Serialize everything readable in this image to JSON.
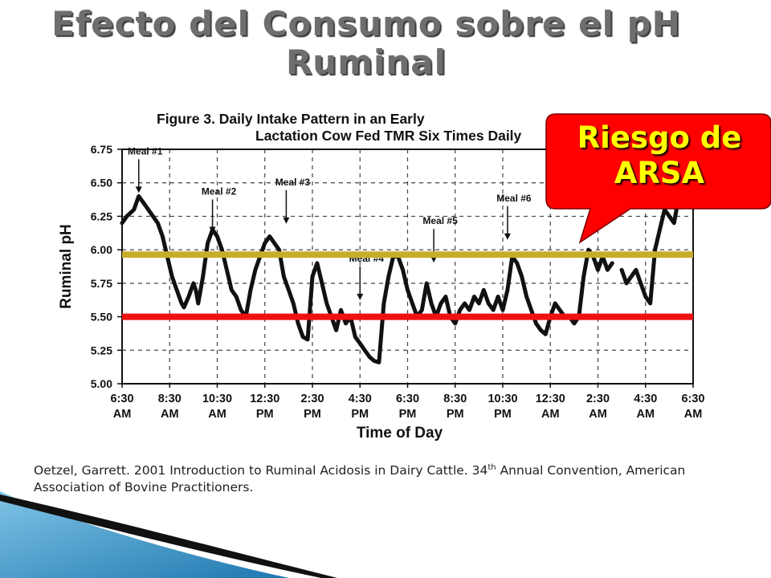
{
  "slide": {
    "title_line1": "Efecto del Consumo sobre el pH",
    "title_line2": "Ruminal",
    "callout_line1": "Riesgo de",
    "callout_line2": "ARSA",
    "citation_part1": "Oetzel, Garrett. 2001   Introduction to Ruminal Acidosis in Dairy Cattle.  34",
    "citation_sup": "th",
    "citation_part2": " Annual Convention, American Association of Bovine Practitioners.",
    "colors": {
      "threshold_gold": "#c8ad2a",
      "threshold_red": "#ee1111",
      "callout_fill": "#ff0000",
      "callout_text": "#ffff00",
      "decor_blue": "#2f8fc2"
    }
  },
  "chart_data": {
    "type": "line",
    "title": "Figure 3. Daily Intake Pattern in an Early Lactation Cow Fed TMR Six Times Daily",
    "xlabel": "Time of Day",
    "ylabel": "Ruminal pH",
    "ylim": [
      5.0,
      6.75
    ],
    "yticks": [
      "6.75",
      "6.50",
      "6.25",
      "6.00",
      "5.75",
      "5.50",
      "5.25",
      "5.00"
    ],
    "xticks": [
      {
        "time": "6:30",
        "ampm": "AM"
      },
      {
        "time": "8:30",
        "ampm": "AM"
      },
      {
        "time": "10:30",
        "ampm": "AM"
      },
      {
        "time": "12:30",
        "ampm": "PM"
      },
      {
        "time": "2:30",
        "ampm": "PM"
      },
      {
        "time": "4:30",
        "ampm": "PM"
      },
      {
        "time": "6:30",
        "ampm": "PM"
      },
      {
        "time": "8:30",
        "ampm": "PM"
      },
      {
        "time": "10:30",
        "ampm": "PM"
      },
      {
        "time": "12:30",
        "ampm": "AM"
      },
      {
        "time": "2:30",
        "ampm": "AM"
      },
      {
        "time": "4:30",
        "ampm": "AM"
      },
      {
        "time": "6:30",
        "ampm": "AM"
      }
    ],
    "grid": true,
    "thresholds": [
      {
        "value": 6.0,
        "color": "#c8ad2a"
      },
      {
        "value": 5.5,
        "color": "#ee1111"
      }
    ],
    "meals": [
      {
        "label": "Meal #1",
        "hours": 0.7,
        "ph": 6.4
      },
      {
        "label": "Meal #2",
        "hours": 3.8,
        "ph": 6.1
      },
      {
        "label": "Meal #3",
        "hours": 6.9,
        "ph": 6.17
      },
      {
        "label": "Meal #4",
        "hours": 10.0,
        "ph": 5.6
      },
      {
        "label": "Meal #5",
        "hours": 13.1,
        "ph": 5.88
      },
      {
        "label": "Meal #6",
        "hours": 16.2,
        "ph": 6.05
      }
    ],
    "series": [
      {
        "segments": [
          [
            [
              0,
              6.2
            ],
            [
              0.2,
              6.25
            ],
            [
              0.5,
              6.3
            ],
            [
              0.7,
              6.4
            ],
            [
              0.9,
              6.35
            ],
            [
              1.1,
              6.3
            ],
            [
              1.3,
              6.25
            ],
            [
              1.5,
              6.2
            ],
            [
              1.7,
              6.1
            ],
            [
              1.9,
              5.95
            ],
            [
              2.1,
              5.8
            ],
            [
              2.3,
              5.7
            ],
            [
              2.5,
              5.6
            ],
            [
              2.6,
              5.57
            ],
            [
              2.8,
              5.65
            ],
            [
              3.0,
              5.75
            ],
            [
              3.1,
              5.7
            ],
            [
              3.2,
              5.6
            ],
            [
              3.4,
              5.8
            ],
            [
              3.6,
              6.05
            ],
            [
              3.8,
              6.15
            ],
            [
              4.0,
              6.1
            ],
            [
              4.2,
              6.0
            ],
            [
              4.4,
              5.85
            ],
            [
              4.6,
              5.7
            ],
            [
              4.8,
              5.65
            ],
            [
              5.0,
              5.55
            ],
            [
              5.2,
              5.5
            ],
            [
              5.4,
              5.7
            ],
            [
              5.6,
              5.85
            ],
            [
              5.8,
              5.95
            ],
            [
              6.0,
              6.05
            ],
            [
              6.2,
              6.1
            ],
            [
              6.4,
              6.05
            ],
            [
              6.6,
              6.0
            ],
            [
              6.8,
              5.8
            ],
            [
              7.0,
              5.7
            ],
            [
              7.2,
              5.6
            ],
            [
              7.4,
              5.45
            ],
            [
              7.6,
              5.35
            ],
            [
              7.8,
              5.33
            ],
            [
              8.0,
              5.8
            ],
            [
              8.2,
              5.9
            ],
            [
              8.4,
              5.75
            ],
            [
              8.6,
              5.6
            ],
            [
              8.8,
              5.5
            ],
            [
              9.0,
              5.4
            ],
            [
              9.2,
              5.55
            ],
            [
              9.4,
              5.45
            ],
            [
              9.6,
              5.5
            ],
            [
              9.8,
              5.35
            ],
            [
              10.0,
              5.3
            ],
            [
              10.2,
              5.25
            ],
            [
              10.4,
              5.2
            ],
            [
              10.6,
              5.17
            ],
            [
              10.8,
              5.16
            ],
            [
              11.0,
              5.6
            ],
            [
              11.2,
              5.8
            ],
            [
              11.4,
              5.95
            ],
            [
              11.6,
              5.95
            ],
            [
              11.8,
              5.85
            ],
            [
              12.0,
              5.7
            ],
            [
              12.2,
              5.6
            ],
            [
              12.4,
              5.5
            ],
            [
              12.6,
              5.55
            ],
            [
              12.8,
              5.75
            ],
            [
              13.0,
              5.6
            ],
            [
              13.2,
              5.5
            ],
            [
              13.4,
              5.6
            ],
            [
              13.6,
              5.65
            ],
            [
              13.8,
              5.5
            ],
            [
              14.0,
              5.45
            ],
            [
              14.2,
              5.55
            ],
            [
              14.4,
              5.6
            ],
            [
              14.6,
              5.55
            ],
            [
              14.8,
              5.65
            ],
            [
              15.0,
              5.6
            ],
            [
              15.2,
              5.7
            ],
            [
              15.4,
              5.6
            ],
            [
              15.6,
              5.55
            ],
            [
              15.8,
              5.65
            ],
            [
              16.0,
              5.55
            ],
            [
              16.2,
              5.7
            ],
            [
              16.4,
              5.95
            ],
            [
              16.6,
              5.9
            ],
            [
              16.8,
              5.8
            ],
            [
              17.0,
              5.65
            ],
            [
              17.2,
              5.55
            ],
            [
              17.4,
              5.45
            ],
            [
              17.6,
              5.4
            ],
            [
              17.8,
              5.37
            ],
            [
              18.0,
              5.5
            ],
            [
              18.2,
              5.6
            ],
            [
              18.4,
              5.55
            ],
            [
              18.6,
              5.5
            ],
            [
              18.8,
              5.5
            ],
            [
              19.0,
              5.45
            ],
            [
              19.2,
              5.5
            ],
            [
              19.4,
              5.8
            ],
            [
              19.6,
              6.0
            ],
            [
              19.8,
              5.95
            ],
            [
              20.0,
              5.85
            ],
            [
              20.2,
              5.95
            ],
            [
              20.4,
              5.85
            ],
            [
              20.6,
              5.9
            ]
          ],
          [
            [
              21.0,
              5.85
            ],
            [
              21.2,
              5.75
            ],
            [
              21.4,
              5.8
            ],
            [
              21.6,
              5.85
            ],
            [
              21.8,
              5.75
            ],
            [
              22.0,
              5.65
            ],
            [
              22.2,
              5.6
            ],
            [
              22.4,
              6.0
            ],
            [
              22.6,
              6.15
            ],
            [
              22.8,
              6.3
            ],
            [
              23.0,
              6.25
            ],
            [
              23.2,
              6.2
            ],
            [
              23.4,
              6.4
            ],
            [
              23.6,
              6.45
            ],
            [
              24.0,
              6.5
            ]
          ]
        ]
      }
    ]
  }
}
